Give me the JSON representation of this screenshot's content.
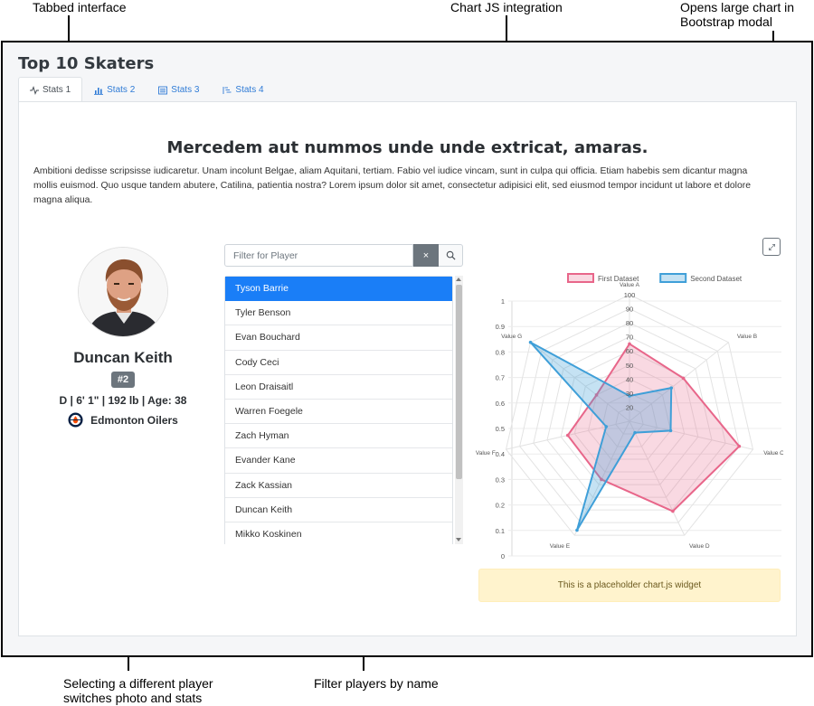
{
  "annotations": {
    "tabbed": "Tabbed interface",
    "chartjs": "Chart JS integration",
    "modal": "Opens large chart in Bootstrap modal",
    "select_player": "Selecting a different player switches photo and stats",
    "filter": "Filter players by name"
  },
  "page": {
    "title": "Top 10 Skaters"
  },
  "tabs": [
    {
      "label": "Stats 1",
      "icon": "activity-icon"
    },
    {
      "label": "Stats 2",
      "icon": "bar-chart-icon"
    },
    {
      "label": "Stats 3",
      "icon": "list-box-icon"
    },
    {
      "label": "Stats 4",
      "icon": "stepped-list-icon"
    }
  ],
  "content": {
    "headline": "Mercedem aut nummos unde unde extricat, amaras.",
    "body": "Ambitioni dedisse scripsisse iudicaretur. Unam incolunt Belgae, aliam Aquitani, tertiam. Fabio vel iudice vincam, sunt in culpa qui officia. Etiam habebis sem dicantur magna mollis euismod. Quo usque tandem abutere, Catilina, patientia nostra? Lorem ipsum dolor sit amet, consectetur adipisici elit, sed eiusmod tempor incidunt ut labore et dolore magna aliqua."
  },
  "player": {
    "name": "Duncan Keith",
    "number": "#2",
    "bio": "D | 6' 1\" | 192 lb | Age: 38",
    "team": "Edmonton Oilers",
    "team_logo": "oilers-logo"
  },
  "filter": {
    "placeholder": "Filter for Player",
    "clear_label": "×"
  },
  "players": [
    "Tyson Barrie",
    "Tyler Benson",
    "Evan Bouchard",
    "Cody Ceci",
    "Leon Draisaitl",
    "Warren Foegele",
    "Zach Hyman",
    "Evander Kane",
    "Zack Kassian",
    "Duncan Keith",
    "Mikko Koskinen"
  ],
  "alert": {
    "text": "This is a placeholder chart.js widget"
  },
  "colors": {
    "first": "#e8668a",
    "second": "#3f9fd8",
    "active": "#1a7ef7"
  },
  "chart_data": {
    "type": "radar",
    "labels": [
      "Value A",
      "Value B",
      "Value C",
      "Value D",
      "Value E",
      "Value F",
      "Value G"
    ],
    "series": [
      {
        "name": "First Dataset",
        "values": [
          65,
          59,
          90,
          81,
          56,
          55,
          40
        ]
      },
      {
        "name": "Second Dataset",
        "values": [
          28,
          48,
          40,
          19,
          96,
          27,
          100
        ]
      }
    ],
    "r_ticks": [
      "20",
      "30",
      "40",
      "50",
      "60",
      "70",
      "80",
      "90",
      "100"
    ],
    "r_range": [
      10,
      100
    ],
    "y_ticks": [
      "0",
      "0.1",
      "0.2",
      "0.3",
      "0.4",
      "0.5",
      "0.6",
      "0.7",
      "0.8",
      "0.9",
      "1"
    ],
    "ylim": [
      0,
      1
    ],
    "legend": "top"
  }
}
